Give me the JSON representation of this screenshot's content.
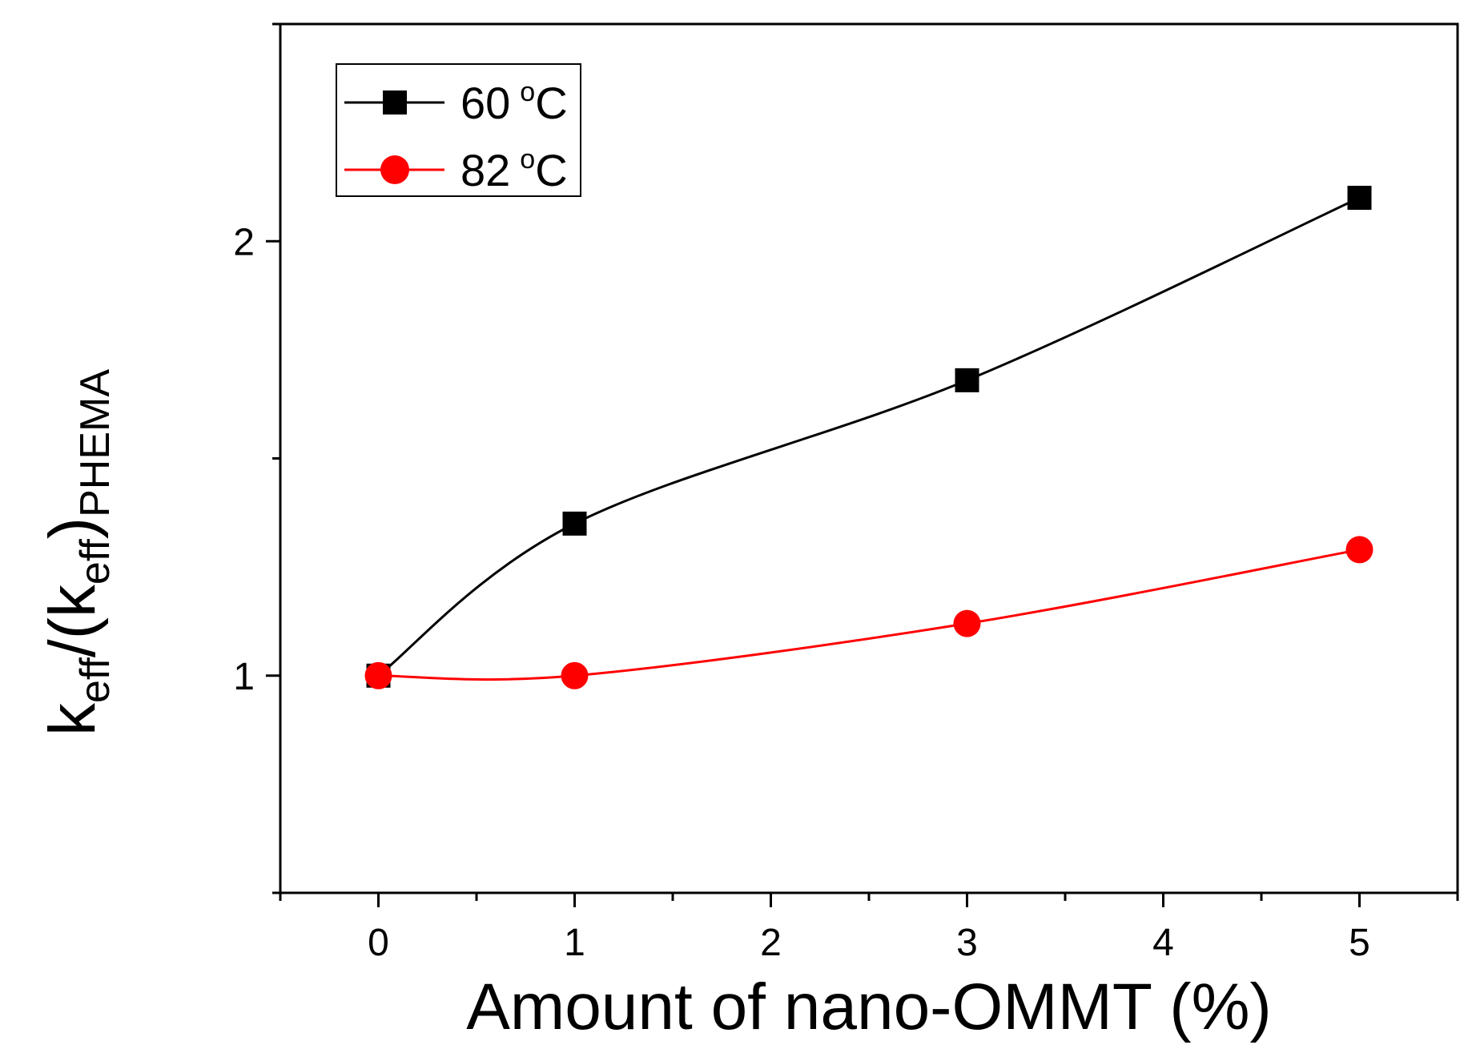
{
  "chart_data": {
    "type": "line",
    "title": "",
    "xlabel": "Amount of nano-OMMT (%)",
    "ylabel": {
      "base": "k",
      "sub1": "eff",
      "mid": "/(k",
      "sub2": "eff",
      "close": ")",
      "sub3": "PHEMA"
    },
    "xlim": [
      -0.5,
      5.5
    ],
    "ylim": [
      0.5,
      2.5
    ],
    "xticks": [
      0,
      1,
      2,
      3,
      4,
      5
    ],
    "xtick_labels": [
      "0",
      "1",
      "2",
      "3",
      "4",
      "5"
    ],
    "yticks": [
      1,
      2
    ],
    "ytick_labels": [
      "1",
      "2"
    ],
    "grid": false,
    "legend_position": "top-left",
    "series": [
      {
        "name": "60 °C",
        "label_value": "60",
        "label_unit": "C",
        "color": "#000000",
        "marker": "square",
        "x": [
          0,
          1,
          3,
          5
        ],
        "y": [
          1.0,
          1.35,
          1.68,
          2.1
        ]
      },
      {
        "name": "82 °C",
        "label_value": "82",
        "label_unit": "C",
        "color": "#ff0000",
        "marker": "circle",
        "x": [
          0,
          1,
          3,
          5
        ],
        "y": [
          1.0,
          1.0,
          1.12,
          1.29
        ]
      }
    ]
  }
}
